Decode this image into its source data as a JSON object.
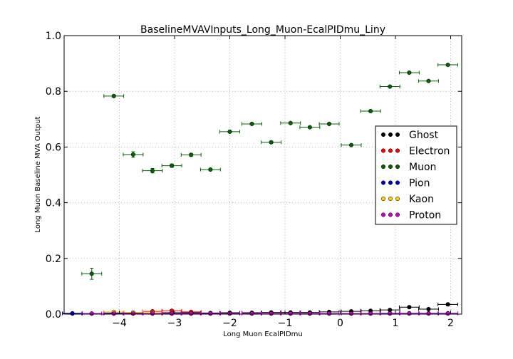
{
  "chart_data": {
    "type": "scatter",
    "title": "BaselineMVAVInputs_Long_Muon-EcalPIDmu_Liny",
    "xlabel": "Long Muon EcalPIDmu",
    "ylabel": "Long Muon Baseline MVA Output",
    "xlim": [
      -5,
      2.2
    ],
    "ylim": [
      0,
      1
    ],
    "x_ticks": [
      -4,
      -3,
      -2,
      -1,
      0,
      1,
      2
    ],
    "y_ticks": [
      0.0,
      0.2,
      0.4,
      0.6,
      0.8,
      1.0
    ],
    "x_tick_labels": [
      "−4",
      "−3",
      "−2",
      "−1",
      "0",
      "1",
      "2"
    ],
    "y_tick_labels": [
      "0.0",
      "0.2",
      "0.4",
      "0.6",
      "0.8",
      "1.0"
    ],
    "grid": true,
    "legend_position": "right",
    "bin_half_width": 0.18,
    "series": [
      {
        "name": "Ghost",
        "color": "#000000",
        "x": [
          -4.85,
          -4.1,
          -3.75,
          -3.4,
          -3.05,
          -2.7,
          -2.35,
          -2.0,
          -1.6,
          -1.25,
          -0.9,
          -0.55,
          -0.2,
          0.2,
          0.55,
          0.9,
          1.25,
          1.6,
          1.95
        ],
        "y": [
          0.003,
          0.004,
          0.004,
          0.005,
          0.005,
          0.005,
          0.004,
          0.005,
          0.005,
          0.006,
          0.006,
          0.006,
          0.008,
          0.01,
          0.012,
          0.015,
          0.025,
          0.018,
          0.035
        ],
        "yerr": [
          0.002,
          0.002,
          0.002,
          0.002,
          0.002,
          0.002,
          0.002,
          0.002,
          0.002,
          0.002,
          0.002,
          0.002,
          0.002,
          0.002,
          0.002,
          0.003,
          0.004,
          0.003,
          0.005
        ]
      },
      {
        "name": "Electron",
        "color": "#ff0000",
        "x": [
          -3.4,
          -3.05,
          -2.7
        ],
        "y": [
          0.01,
          0.012,
          0.008
        ],
        "yerr": [
          0.003,
          0.004,
          0.003
        ]
      },
      {
        "name": "Muon",
        "color": "#006400",
        "x": [
          -4.5,
          -4.1,
          -3.75,
          -3.4,
          -3.05,
          -2.7,
          -2.35,
          -2.0,
          -1.6,
          -1.25,
          -0.9,
          -0.55,
          -0.2,
          0.2,
          0.55,
          0.9,
          1.25,
          1.6,
          1.95
        ],
        "y": [
          0.145,
          0.783,
          0.573,
          0.515,
          0.533,
          0.572,
          0.519,
          0.655,
          0.683,
          0.617,
          0.686,
          0.671,
          0.683,
          0.607,
          0.729,
          0.817,
          0.867,
          0.837,
          0.895
        ],
        "yerr": [
          0.02,
          0.004,
          0.01,
          0.008,
          0.006,
          0.005,
          0.004,
          0.004,
          0.004,
          0.004,
          0.003,
          0.003,
          0.003,
          0.003,
          0.003,
          0.003,
          0.003,
          0.003,
          0.003
        ]
      },
      {
        "name": "Pion",
        "color": "#0000cc",
        "x": [
          -4.85,
          -4.5,
          -4.1,
          -3.75,
          -3.4,
          -3.05,
          -2.7,
          -2.35,
          -2.0,
          -1.6,
          -1.25,
          -0.9,
          -0.55,
          -0.2,
          0.2,
          0.55,
          0.9,
          1.25,
          1.6,
          1.95
        ],
        "y": [
          0.002,
          0.002,
          0.002,
          0.002,
          0.002,
          0.002,
          0.002,
          0.002,
          0.002,
          0.002,
          0.002,
          0.002,
          0.002,
          0.002,
          0.002,
          0.002,
          0.003,
          0.003,
          0.003,
          0.003
        ],
        "yerr": [
          0.001,
          0.001,
          0.001,
          0.001,
          0.001,
          0.001,
          0.001,
          0.001,
          0.001,
          0.001,
          0.001,
          0.001,
          0.001,
          0.001,
          0.001,
          0.001,
          0.001,
          0.001,
          0.001,
          0.001
        ]
      },
      {
        "name": "Kaon",
        "color": "#ffcc00",
        "x": [
          -4.1,
          -3.75,
          -3.4
        ],
        "y": [
          0.008,
          0.006,
          0.005
        ],
        "yerr": [
          0.006,
          0.004,
          0.003
        ]
      },
      {
        "name": "Proton",
        "color": "#cc00cc",
        "x": [
          -4.5,
          -4.1,
          -3.75,
          -3.4,
          -3.05,
          -2.7,
          -2.35,
          -2.0,
          -1.6,
          -1.25,
          -0.9,
          -0.55,
          -0.2,
          0.2,
          0.55,
          0.9,
          1.25,
          1.6,
          1.95
        ],
        "y": [
          0.002,
          0.002,
          0.002,
          0.002,
          0.002,
          0.002,
          0.002,
          0.002,
          0.002,
          0.002,
          0.002,
          0.002,
          0.002,
          0.002,
          0.002,
          0.002,
          0.002,
          0.002,
          0.002
        ],
        "yerr": [
          0.001,
          0.001,
          0.001,
          0.001,
          0.001,
          0.001,
          0.001,
          0.001,
          0.001,
          0.001,
          0.001,
          0.001,
          0.001,
          0.001,
          0.001,
          0.001,
          0.001,
          0.001,
          0.001
        ]
      }
    ]
  }
}
